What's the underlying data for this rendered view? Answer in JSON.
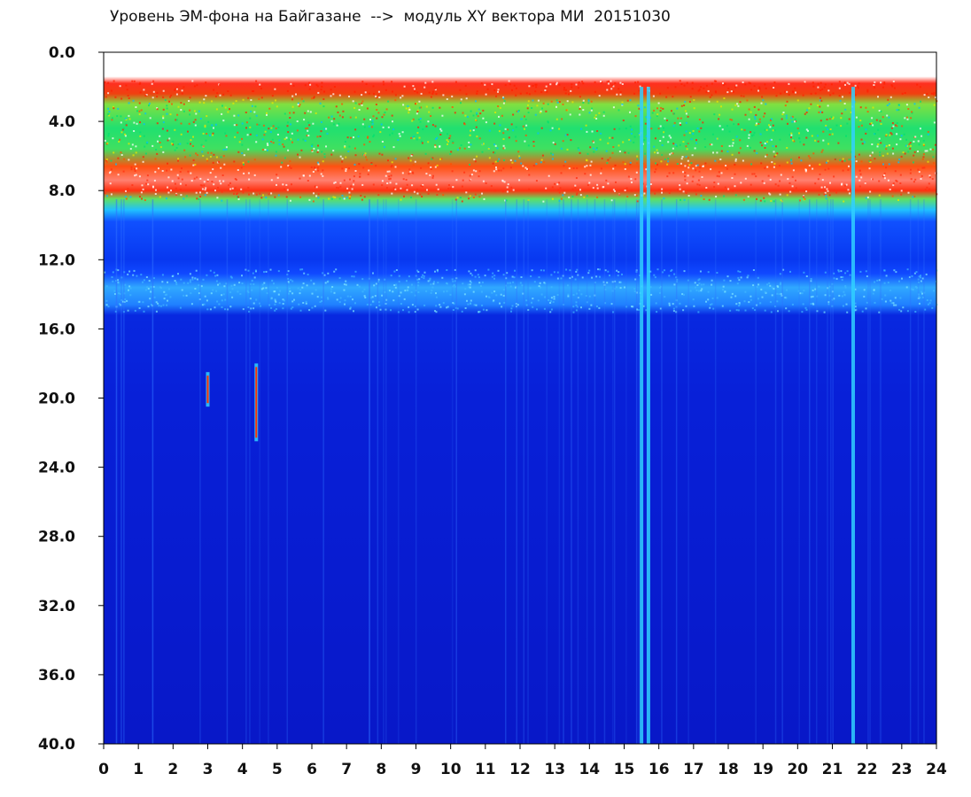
{
  "chart_data": {
    "type": "heatmap",
    "title": "Уровень ЭМ-фона на Байгазане  -->  модуль XY вектора МИ  20151030",
    "x_ticks": [
      "0",
      "1",
      "2",
      "3",
      "4",
      "5",
      "6",
      "7",
      "8",
      "9",
      "10",
      "11",
      "12",
      "13",
      "14",
      "15",
      "16",
      "17",
      "18",
      "19",
      "20",
      "21",
      "22",
      "23",
      "24"
    ],
    "y_ticks": [
      "0.0",
      "4.0",
      "8.0",
      "12.0",
      "16.0",
      "20.0",
      "24.0",
      "28.0",
      "32.0",
      "36.0",
      "40.0"
    ],
    "xlim": [
      0,
      24
    ],
    "ylim": [
      0,
      40
    ],
    "y_inverted": true,
    "colorscale": [
      "#0010c8",
      "#1040ff",
      "#00c0ff",
      "#00e070",
      "#e8e800",
      "#ff2000",
      "#ffffff"
    ],
    "bands": [
      {
        "y_from": 0,
        "y_to": 1.5,
        "level": "none"
      },
      {
        "y_from": 1.5,
        "y_to": 2.5,
        "level": "red-edge"
      },
      {
        "y_from": 2.5,
        "y_to": 6.5,
        "level": "green"
      },
      {
        "y_from": 6.5,
        "y_to": 8.3,
        "level": "red-white"
      },
      {
        "y_from": 8.3,
        "y_to": 9.5,
        "level": "cyan"
      },
      {
        "y_from": 9.5,
        "y_to": 12.5,
        "level": "blue"
      },
      {
        "y_from": 12.5,
        "y_to": 15.0,
        "level": "light-blue"
      },
      {
        "y_from": 15.0,
        "y_to": 40,
        "level": "dark-blue"
      }
    ],
    "spikes": [
      {
        "x": 4.4,
        "y_from": 18.0,
        "y_to": 22.5
      },
      {
        "x": 3.0,
        "y_from": 18.5,
        "y_to": 20.5
      },
      {
        "x": 15.5,
        "y_from": 2.0,
        "y_to": 40
      },
      {
        "x": 15.7,
        "y_from": 2.0,
        "y_to": 40
      },
      {
        "x": 21.6,
        "y_from": 2.0,
        "y_to": 40
      }
    ]
  }
}
